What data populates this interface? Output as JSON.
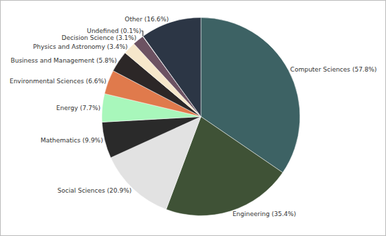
{
  "chart_data": {
    "type": "pie",
    "categories": [
      "Computer Sciences",
      "Engineering",
      "Social Sciences",
      "Mathematics",
      "Energy",
      "Environmental Sciences",
      "Business and Management",
      "Physics and Astronomy",
      "Decision Science",
      "Undefined",
      "Other"
    ],
    "values": [
      57.8,
      35.4,
      20.9,
      9.9,
      7.7,
      6.6,
      5.8,
      3.4,
      3.1,
      0.1,
      16.6
    ],
    "value_labels": [
      "Computer Sciences (57.8%)",
      "Engineering (35.4%)",
      "Social Sciences (20.9%)",
      "Mathematics (9.9%)",
      "Energy (7.7%)",
      "Environmental Sciences (6.6%)",
      "Business and Management (5.8%)",
      "Physics and Astronomy (3.4%)",
      "Decision Science (3.1%)",
      "Undefined (0.1%)",
      "Other (16.6%)"
    ],
    "colors": [
      "#3d6264",
      "#3f5236",
      "#e2e2e2",
      "#2a2a2a",
      "#a8f7bb",
      "#e07a4c",
      "#2c2727",
      "#f6e7cb",
      "#6c5262",
      "#ffffff",
      "#2c3645"
    ],
    "data_labels": true
  }
}
